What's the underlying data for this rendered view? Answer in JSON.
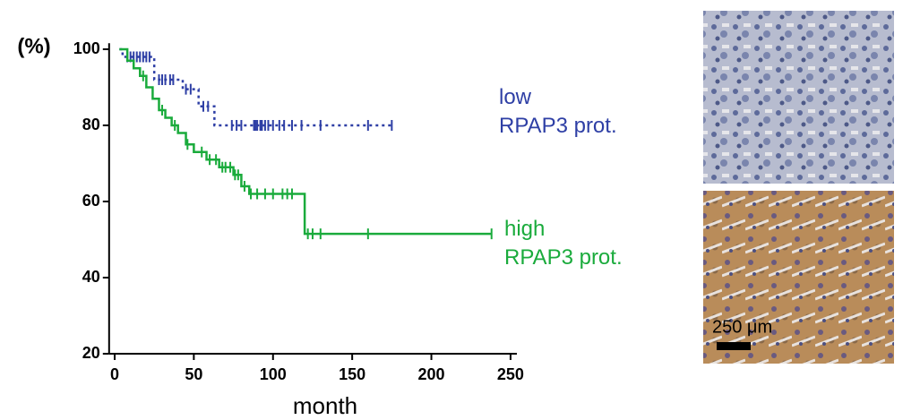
{
  "chart_data": {
    "type": "line",
    "step": "post",
    "y_label": "(%)",
    "x_label": "month",
    "xlim": [
      -3.5,
      254
    ],
    "xticks": [
      0,
      50,
      100,
      150,
      200,
      250
    ],
    "ylim": [
      20,
      101.6
    ],
    "yticks": [
      20,
      40,
      60,
      80,
      100
    ],
    "series": [
      {
        "name": "low\nRPAP3 prot.",
        "color": "#2e3fa5",
        "dash": "3,4",
        "x": [
          3,
          5,
          25,
          43,
          53,
          63,
          175
        ],
        "values": [
          100,
          98,
          92,
          89.5,
          85,
          80,
          80
        ],
        "censored": [
          8,
          10,
          12,
          14,
          16,
          18,
          20,
          22,
          28,
          30,
          32,
          35,
          37,
          45,
          48,
          56,
          59,
          74,
          77,
          80,
          88,
          89,
          90,
          92,
          93,
          95,
          97,
          100,
          104,
          107,
          112,
          118,
          130,
          160,
          175
        ]
      },
      {
        "name": "high\nRPAP3 prot.",
        "color": "#1aab3c",
        "dash": "",
        "x": [
          3,
          8,
          12,
          16,
          20,
          24,
          28,
          32,
          36,
          40,
          45,
          50,
          58,
          66,
          75,
          80,
          85,
          120,
          238
        ],
        "values": [
          100,
          97,
          95,
          93,
          90,
          87,
          84,
          82,
          80,
          78,
          75,
          73,
          71,
          69,
          67,
          64,
          62,
          51.5,
          51.5
        ],
        "censored": [
          18,
          30,
          38,
          46,
          55,
          60,
          64,
          68,
          70,
          73,
          76,
          78,
          82,
          86,
          90,
          95,
          100,
          106,
          109,
          112,
          122,
          125,
          130,
          160,
          238
        ]
      }
    ],
    "scale_label": "250 μm"
  }
}
